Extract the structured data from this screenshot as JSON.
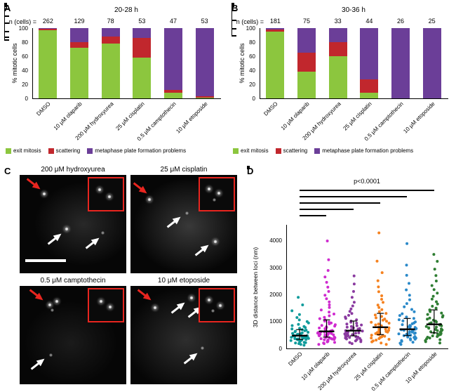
{
  "panels": {
    "a": "A",
    "b": "B",
    "c": "C",
    "d": "D"
  },
  "chart_data": [
    {
      "id": "panel-a-chart",
      "type": "bar",
      "stacked": true,
      "title": "20-28 h",
      "n_label": "n (cells) =",
      "n_values": [
        262,
        129,
        78,
        53,
        47,
        53
      ],
      "categories": [
        "DMSO",
        "10 μM olaparib",
        "200 μM hydroxyurea",
        "25 μM cisplatin",
        "0.5 μM camptothecin",
        "10 μM etoposide"
      ],
      "ylabel": "% mitotic cells",
      "ylim": [
        0,
        100
      ],
      "yticks": [
        0,
        20,
        40,
        60,
        80,
        100
      ],
      "series": [
        {
          "name": "exit mitosis",
          "color": "#8cc63e",
          "values": [
            97,
            72,
            78,
            58,
            8,
            1
          ]
        },
        {
          "name": "scattering",
          "color": "#c1272d",
          "values": [
            2,
            8,
            10,
            28,
            4,
            2
          ]
        },
        {
          "name": "metaphase plate formation problems",
          "color": "#6b3e98",
          "values": [
            1,
            20,
            12,
            14,
            88,
            97
          ]
        }
      ],
      "errors": [
        1,
        4,
        4,
        5,
        3,
        1
      ],
      "legend_position": "bottom"
    },
    {
      "id": "panel-b-chart",
      "type": "bar",
      "stacked": true,
      "title": "30-36 h",
      "n_label": "n (cells) =",
      "n_values": [
        181,
        75,
        33,
        44,
        26,
        25
      ],
      "categories": [
        "DMSO",
        "10 μM olaparib",
        "200 μM hydroxyurea",
        "25 μM cisplatin",
        "0.5 μM camptothecin",
        "10 μM etoposide"
      ],
      "ylabel": "% mitotic cells",
      "ylim": [
        0,
        100
      ],
      "yticks": [
        0,
        20,
        40,
        60,
        80,
        100
      ],
      "series": [
        {
          "name": "exit mitosis",
          "color": "#8cc63e",
          "values": [
            95,
            38,
            60,
            8,
            0,
            0
          ]
        },
        {
          "name": "scattering",
          "color": "#c1272d",
          "values": [
            3,
            27,
            20,
            19,
            0,
            0
          ]
        },
        {
          "name": "metaphase plate formation problems",
          "color": "#6b3e98",
          "values": [
            2,
            35,
            20,
            73,
            100,
            100
          ]
        }
      ],
      "errors": [
        2,
        6,
        5,
        4,
        0,
        0
      ],
      "legend_position": "bottom"
    },
    {
      "id": "panel-d-chart",
      "type": "scatter",
      "ylabel": "3D distance between loci (nm)",
      "ylim": [
        0,
        4600
      ],
      "yticks": [
        0,
        1000,
        2000,
        3000,
        4000
      ],
      "p_label": "p<0.0001",
      "significance": [
        [
          "DMSO",
          "10 μM etoposide"
        ],
        [
          "DMSO",
          "0.5 μM camptothecin"
        ],
        [
          "DMSO",
          "25 μM cisplatin"
        ],
        [
          "DMSO",
          "200 μM hydroxyurea"
        ],
        [
          "DMSO",
          "10 μM olaparib"
        ]
      ],
      "groups": [
        {
          "name": "DMSO",
          "color": "#0f9b9b",
          "values": [
            120,
            150,
            180,
            200,
            215,
            230,
            250,
            265,
            280,
            295,
            305,
            315,
            325,
            335,
            345,
            355,
            365,
            375,
            385,
            395,
            405,
            415,
            425,
            435,
            445,
            455,
            465,
            475,
            485,
            495,
            505,
            515,
            530,
            545,
            560,
            580,
            600,
            620,
            640,
            660,
            680,
            700,
            725,
            750,
            780,
            815,
            850,
            895,
            945,
            1000,
            1060,
            1150,
            1260,
            1400,
            1620,
            1900
          ]
        },
        {
          "name": "10 μM olaparib",
          "color": "#cf2bcf",
          "values": [
            150,
            180,
            205,
            225,
            245,
            262,
            280,
            298,
            312,
            325,
            338,
            350,
            362,
            374,
            386,
            398,
            410,
            422,
            434,
            446,
            458,
            470,
            482,
            494,
            506,
            518,
            530,
            542,
            554,
            566,
            578,
            590,
            605,
            620,
            636,
            652,
            668,
            685,
            702,
            720,
            740,
            760,
            782,
            805,
            830,
            856,
            884,
            914,
            946,
            980,
            1020,
            1062,
            1108,
            1158,
            1215,
            1280,
            1350,
            1430,
            1520,
            1620,
            1730,
            1850,
            1980,
            2120,
            2280,
            2460,
            2660,
            2900,
            3300,
            4000
          ]
        },
        {
          "name": "200 μM hydroxyurea",
          "color": "#8a3aa0",
          "values": [
            180,
            220,
            252,
            282,
            308,
            330,
            352,
            372,
            390,
            408,
            424,
            440,
            455,
            470,
            484,
            498,
            512,
            526,
            540,
            554,
            568,
            582,
            597,
            612,
            628,
            645,
            662,
            680,
            700,
            720,
            742,
            765,
            790,
            816,
            844,
            874,
            906,
            940,
            978,
            1020,
            1065,
            1115,
            1170,
            1230,
            1300,
            1380,
            1470,
            1580,
            1720,
            1900,
            2120,
            2400,
            2700
          ]
        },
        {
          "name": "25 μM cisplatin",
          "color": "#f58220",
          "values": [
            150,
            200,
            245,
            280,
            312,
            340,
            366,
            390,
            412,
            434,
            455,
            475,
            495,
            514,
            533,
            552,
            571,
            590,
            610,
            630,
            650,
            672,
            694,
            717,
            740,
            765,
            790,
            817,
            845,
            875,
            906,
            940,
            975,
            1012,
            1052,
            1095,
            1140,
            1190,
            1245,
            1305,
            1370,
            1445,
            1525,
            1615,
            1715,
            1830,
            1960,
            2110,
            2290,
            2520,
            2820,
            3250,
            4300
          ]
        },
        {
          "name": "0.5 μM camptothecin",
          "color": "#2a89c9",
          "values": [
            150,
            195,
            232,
            264,
            292,
            318,
            342,
            364,
            385,
            405,
            424,
            442,
            460,
            477,
            494,
            510,
            526,
            542,
            558,
            574,
            590,
            606,
            622,
            640,
            658,
            676,
            695,
            715,
            736,
            758,
            781,
            805,
            830,
            857,
            886,
            917,
            950,
            986,
            1025,
            1068,
            1115,
            1167,
            1225,
            1290,
            1365,
            1450,
            1550,
            1670,
            1810,
            1980,
            2180,
            2420,
            2720,
            3100,
            3900
          ]
        },
        {
          "name": "10 μM etoposide",
          "color": "#2e7d32",
          "values": [
            200,
            250,
            292,
            328,
            360,
            390,
            418,
            444,
            468,
            492,
            514,
            536,
            558,
            579,
            600,
            621,
            642,
            663,
            684,
            705,
            727,
            749,
            772,
            795,
            819,
            844,
            870,
            897,
            925,
            955,
            986,
            1019,
            1054,
            1091,
            1130,
            1172,
            1217,
            1265,
            1317,
            1373,
            1434,
            1500,
            1572,
            1651,
            1738,
            1834,
            1940,
            2058,
            2190,
            2340,
            2510,
            2710,
            2950,
            3240,
            3500
          ]
        }
      ]
    }
  ],
  "microscopy": {
    "titles": [
      "200 μM hydroxyurea",
      "25 μM cisplatin",
      "0.5 μM camptothecin",
      "10 μM etoposide"
    ]
  }
}
